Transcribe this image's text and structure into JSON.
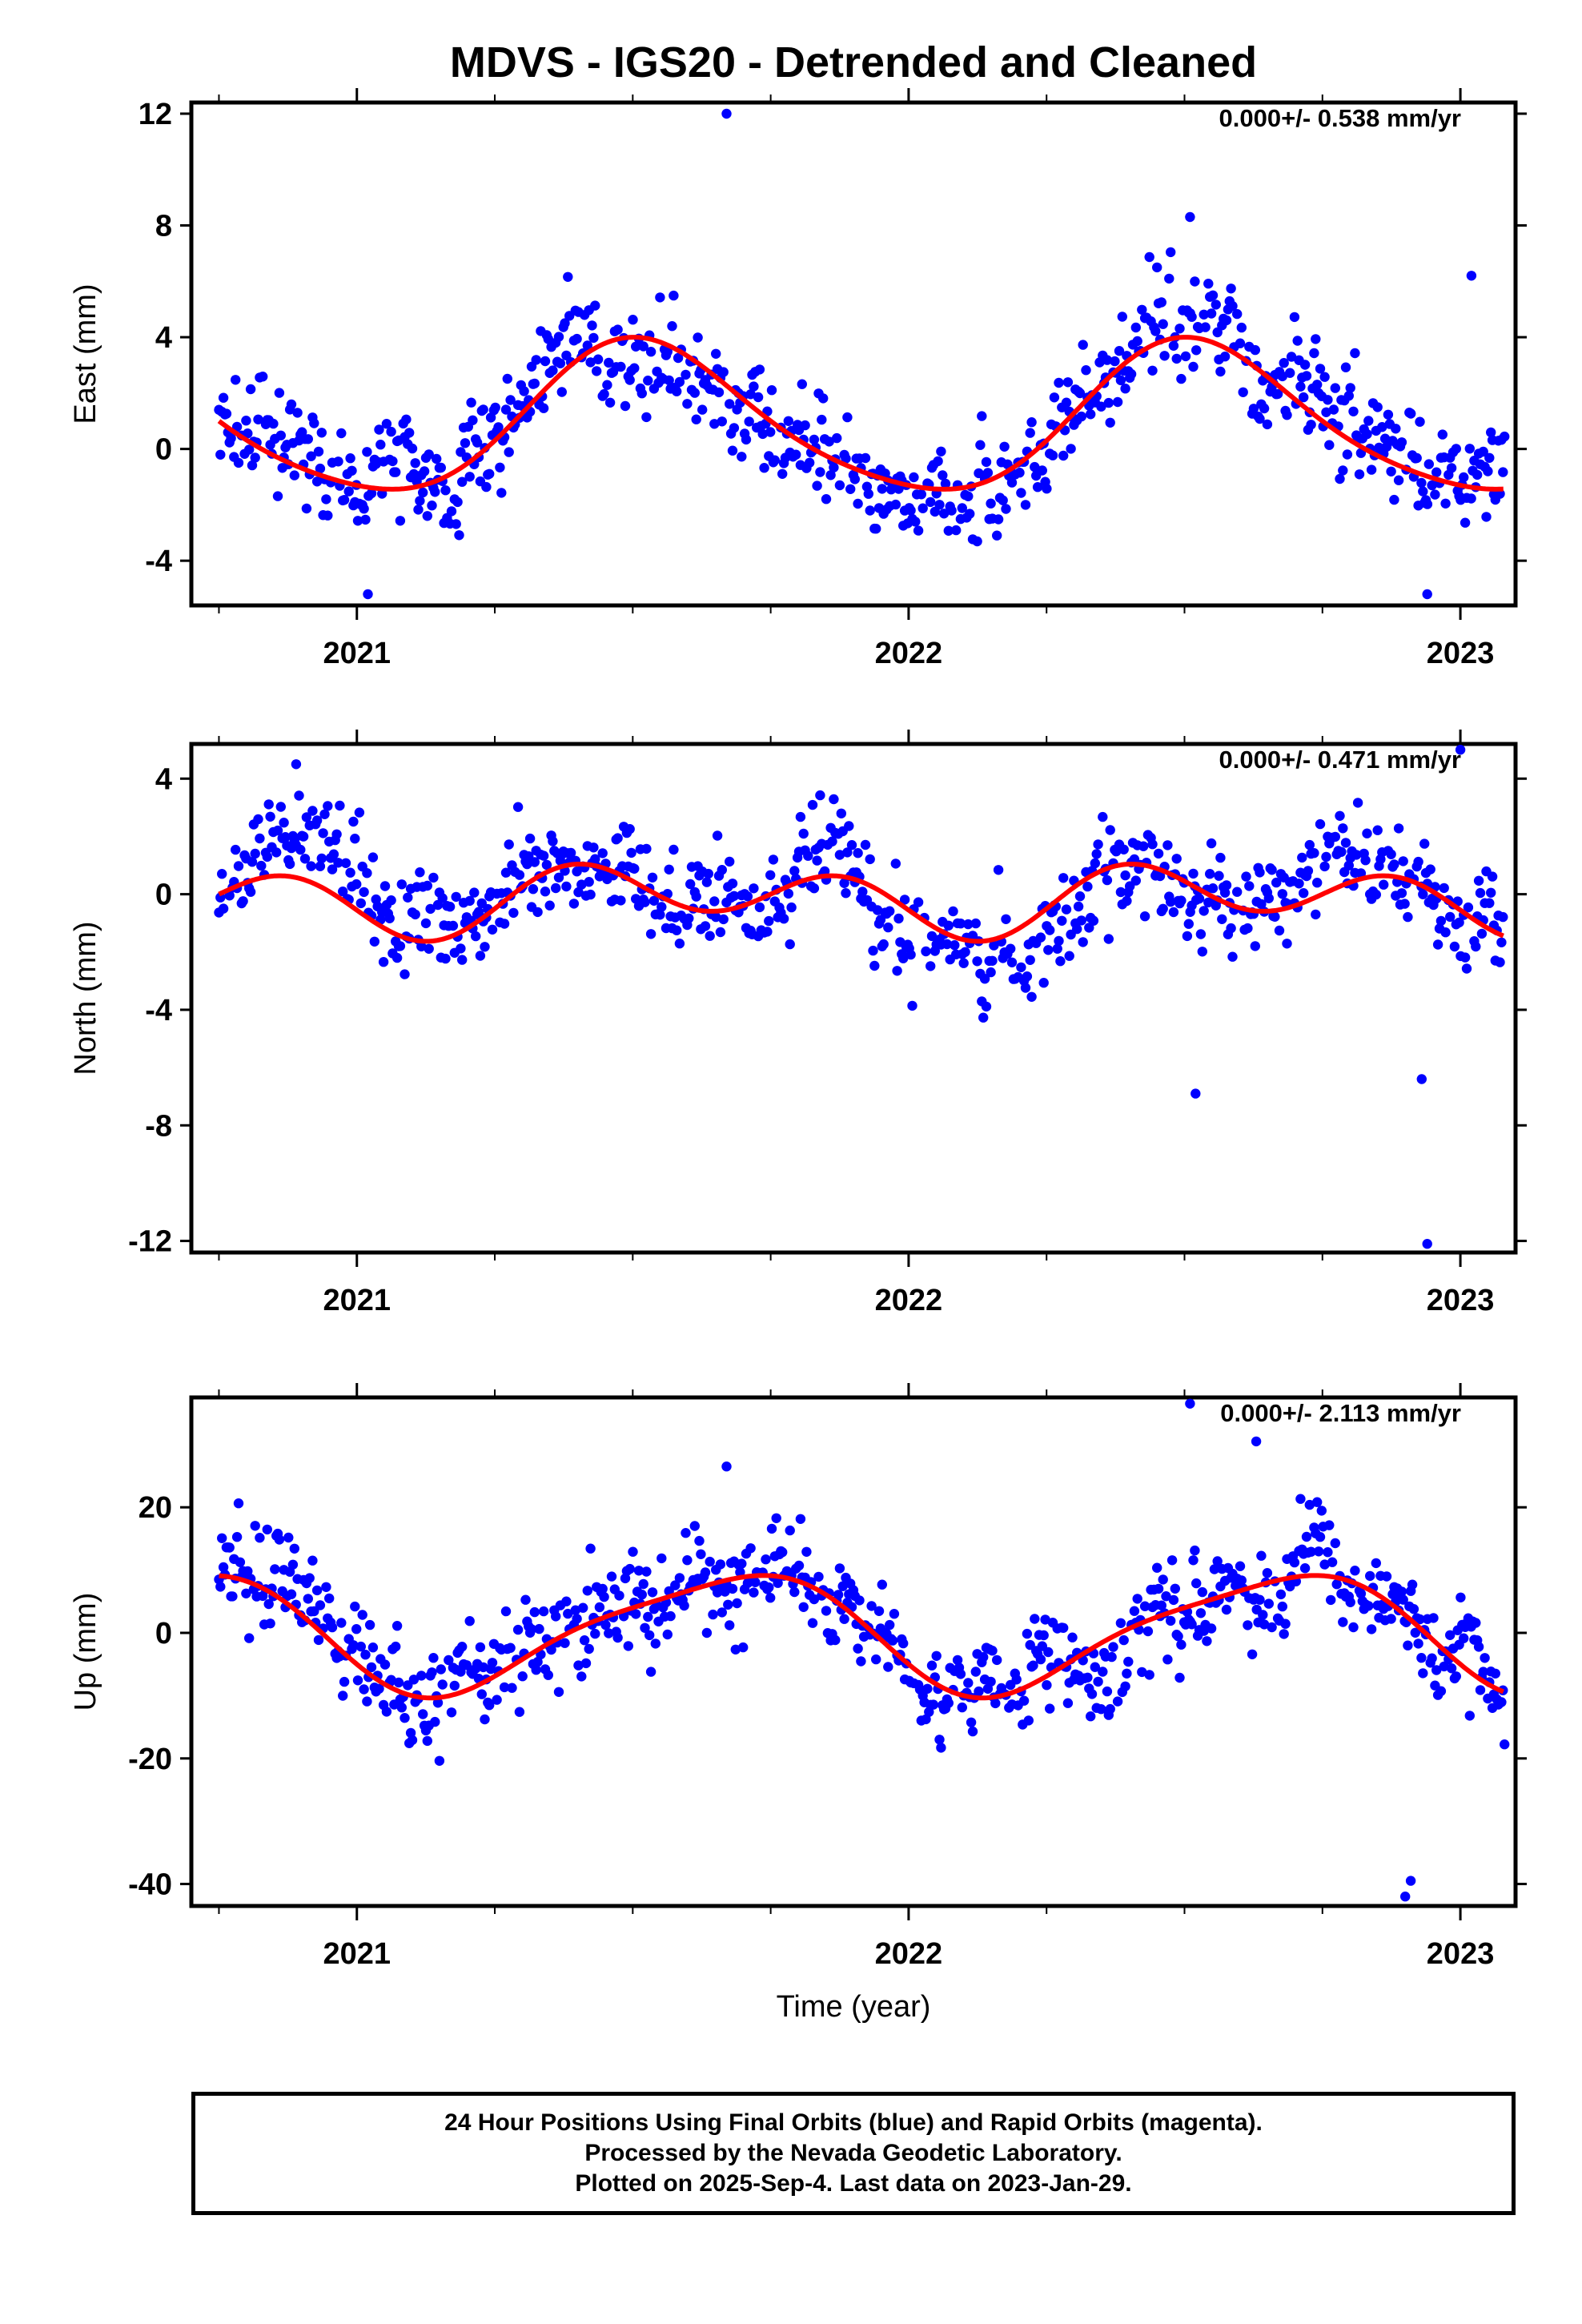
{
  "title": "MDVS - IGS20 - Detrended and Cleaned",
  "colors": {
    "points": "#0000ff",
    "fit": "#ff0000",
    "frame": "#000000"
  },
  "chart_data": [
    {
      "type": "scatter",
      "ylabel": "East (mm)",
      "xlabel": "",
      "rate": "0.000+/- 0.538 mm/yr",
      "xlim": [
        2020.7,
        2023.1
      ],
      "ylim": [
        -5.6,
        12.4
      ],
      "yticks": [
        12,
        8,
        4,
        0,
        -4
      ],
      "ytick_labels": [
        "12",
        "8",
        "4",
        "0",
        "-4"
      ],
      "xticks": [
        2021,
        2022,
        2023
      ],
      "xtick_labels": [
        "2021",
        "2022",
        "2023"
      ],
      "minor_xticks": [
        2020.75,
        2021.25,
        2021.5,
        2021.75,
        2022.25,
        2022.5,
        2022.75
      ],
      "trend": {
        "mean": 1.0,
        "annual": [
          -2.65,
          -0.35
        ],
        "semiannual": [
          0.35,
          -0.15
        ]
      },
      "noise": 1.2,
      "outliers": [
        [
          2021.67,
          12.0
        ],
        [
          2022.51,
          8.3
        ],
        [
          2023.02,
          6.2
        ],
        [
          2022.94,
          -5.2
        ],
        [
          2021.02,
          -5.2
        ]
      ]
    },
    {
      "type": "scatter",
      "ylabel": "North (mm)",
      "xlabel": "",
      "rate": "0.000+/- 0.471 mm/yr",
      "xlim": [
        2020.7,
        2023.1
      ],
      "ylim": [
        -12.4,
        5.2
      ],
      "yticks": [
        4,
        0,
        -4,
        -8,
        -12
      ],
      "ytick_labels": [
        "4",
        "0",
        "-4",
        "-8",
        "-12"
      ],
      "xticks": [
        2021,
        2022,
        2023
      ],
      "xtick_labels": [
        "2021",
        "2022",
        "2023"
      ],
      "minor_xticks": [
        2020.75,
        2021.25,
        2021.5,
        2021.75,
        2022.25,
        2022.5,
        2022.75
      ],
      "trend": {
        "mean": -0.15,
        "annual": [
          -0.5,
          -0.25
        ],
        "semiannual": [
          0.1,
          -0.95
        ]
      },
      "noise": 1.1,
      "outliers": [
        [
          2022.94,
          -12.1
        ],
        [
          2022.52,
          -6.9
        ],
        [
          2022.93,
          -6.4
        ],
        [
          2023.0,
          5.0
        ],
        [
          2020.89,
          4.5
        ]
      ]
    },
    {
      "type": "scatter",
      "ylabel": "Up (mm)",
      "xlabel": "Time (year)",
      "rate": "0.000+/- 2.113 mm/yr",
      "xlim": [
        2020.7,
        2023.1
      ],
      "ylim": [
        -43.5,
        37.5
      ],
      "yticks": [
        20,
        0,
        -20,
        -40
      ],
      "ytick_labels": [
        "20",
        "0",
        "-20",
        "-40"
      ],
      "xticks": [
        2021,
        2022,
        2023
      ],
      "xtick_labels": [
        "2021",
        "2022",
        "2023"
      ],
      "minor_xticks": [
        2020.75,
        2021.25,
        2021.5,
        2021.75,
        2022.25,
        2022.5,
        2022.75
      ],
      "trend": {
        "mean": 0.3,
        "annual": [
          -4.5,
          -8.0
        ],
        "semiannual": [
          -0.8,
          -1.8
        ]
      },
      "noise": 5.0,
      "outliers": [
        [
          2022.51,
          36.5
        ],
        [
          2022.63,
          30.5
        ],
        [
          2021.67,
          26.5
        ],
        [
          2022.9,
          -42.0
        ],
        [
          2022.91,
          -39.5
        ]
      ]
    }
  ],
  "footer": {
    "line1": "24 Hour Positions Using Final Orbits (blue) and Rapid Orbits (magenta).",
    "line2": "Processed by the Nevada Geodetic Laboratory.",
    "line3": "Plotted on 2025-Sep-4. Last data on 2023-Jan-29."
  }
}
